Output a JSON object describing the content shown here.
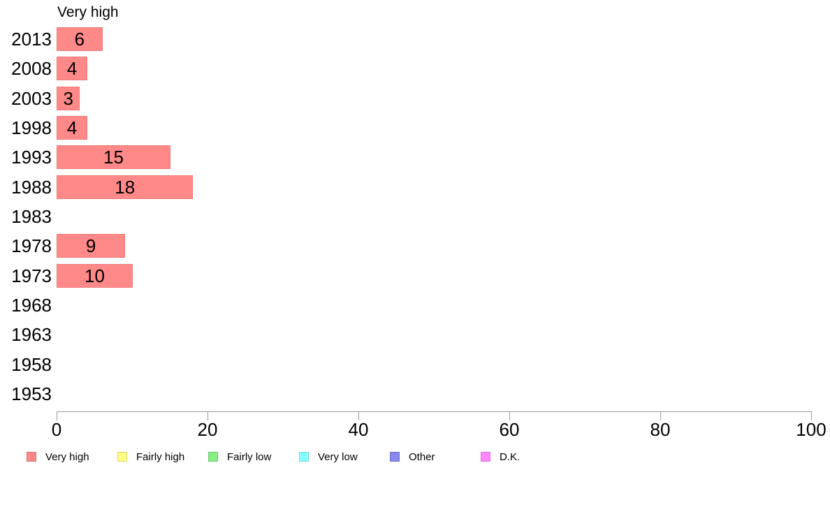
{
  "chart_data": {
    "type": "bar",
    "orientation": "horizontal",
    "title": "Very high",
    "categories": [
      "2013",
      "2008",
      "2003",
      "1998",
      "1993",
      "1988",
      "1983",
      "1978",
      "1973",
      "1968",
      "1963",
      "1958",
      "1953"
    ],
    "values": [
      6,
      4,
      3,
      4,
      15,
      18,
      0,
      9,
      10,
      0,
      0,
      0,
      0
    ],
    "xlabel": "",
    "ylabel": "",
    "xlim": [
      0,
      100
    ],
    "xticks": [
      0,
      20,
      40,
      60,
      80,
      100
    ],
    "grid": false,
    "value_labels_inside_bars": true,
    "colors": {
      "bar_fill": "#ff8888",
      "bar_border": "#f07878",
      "axis": "#999999",
      "text": "#000000",
      "background": "#ffffff"
    },
    "legend_position": "bottom",
    "legend": [
      {
        "label": "Very high",
        "color": "#ff8888",
        "border": "#d97070"
      },
      {
        "label": "Fairly high",
        "color": "#ffff88",
        "border": "#d9d970"
      },
      {
        "label": "Fairly low",
        "color": "#88ee88",
        "border": "#70c970"
      },
      {
        "label": "Very low",
        "color": "#88ffff",
        "border": "#70d9d9"
      },
      {
        "label": "Other",
        "color": "#8888ee",
        "border": "#7070c9"
      },
      {
        "label": "D.K.",
        "color": "#ff88ff",
        "border": "#d970d9"
      }
    ]
  }
}
